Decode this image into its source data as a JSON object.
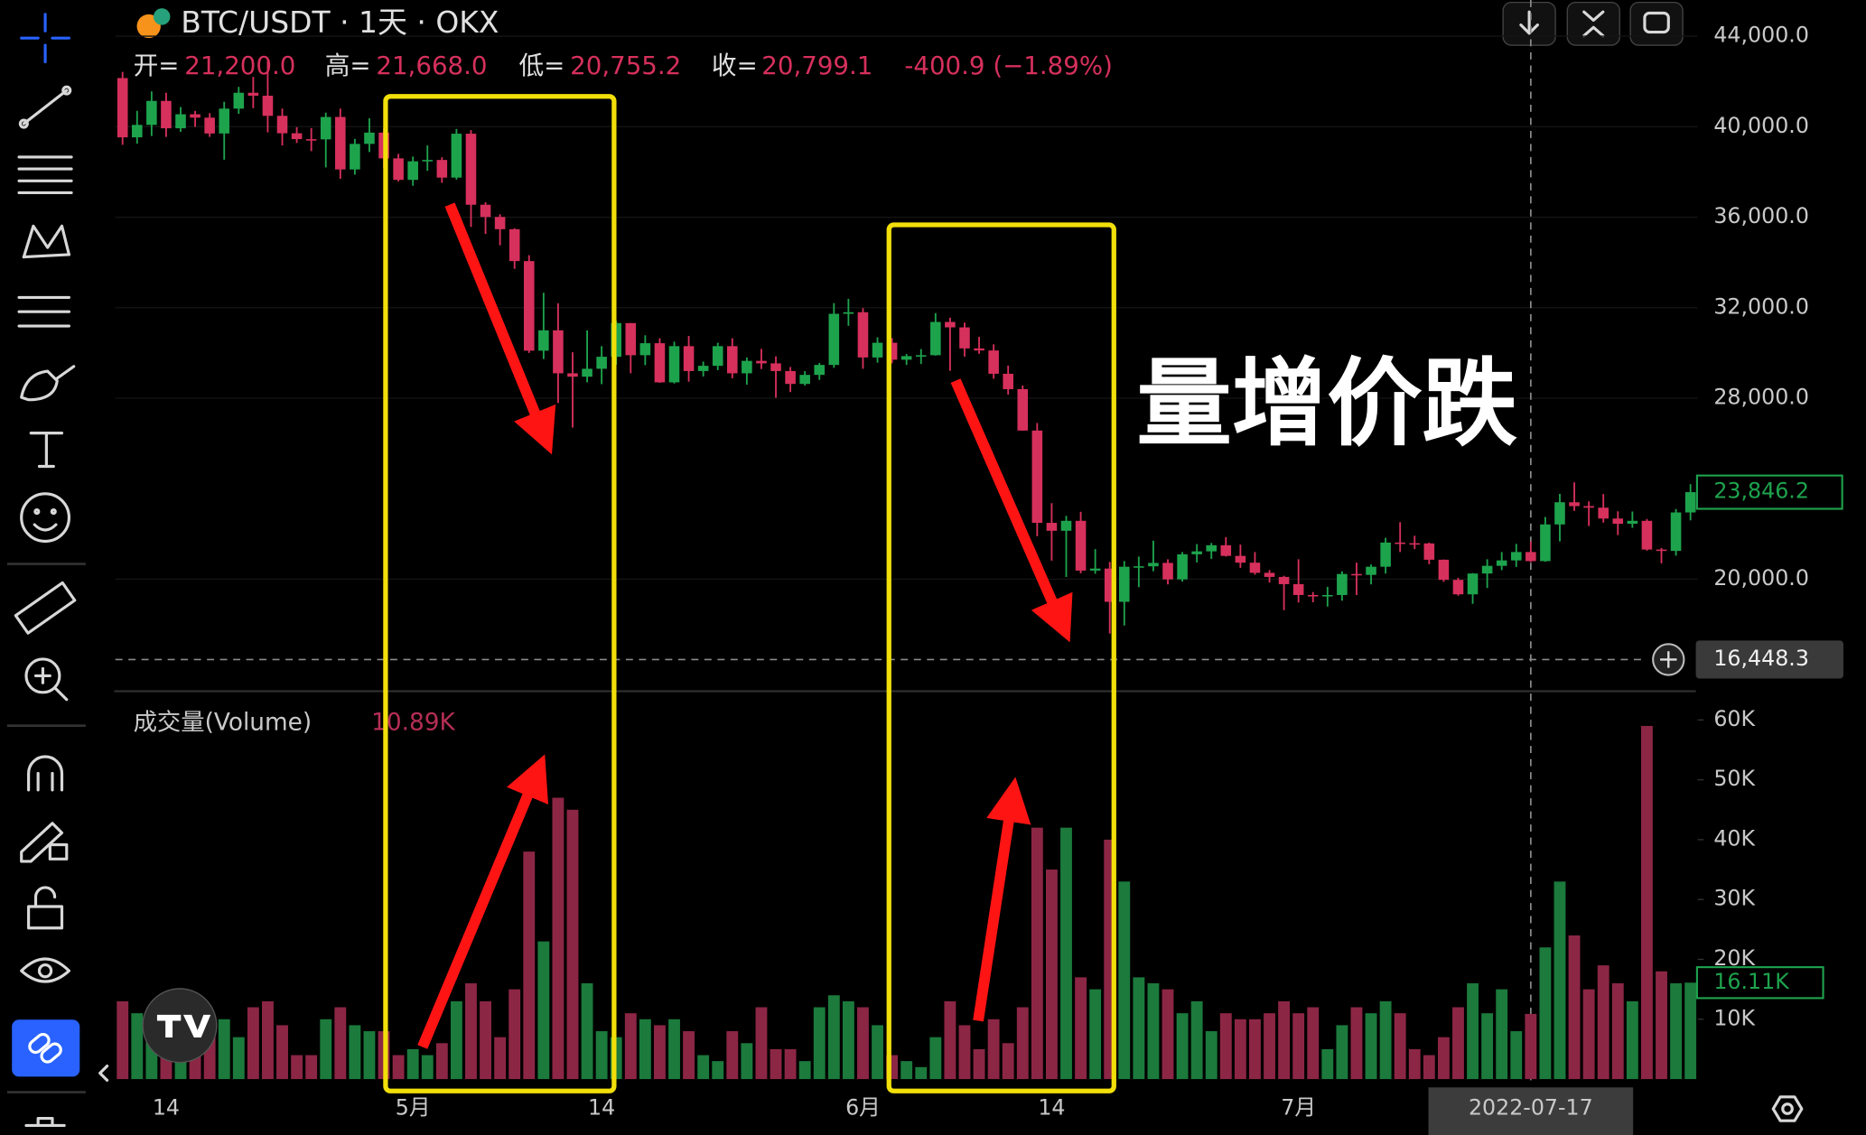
{
  "header": {
    "symbol": "BTC/USDT · 1天 · OKX",
    "ohlc": [
      {
        "label": "开=",
        "value": "21,200.0"
      },
      {
        "label": "高=",
        "value": "21,668.0"
      },
      {
        "label": "低=",
        "value": "20,755.2"
      },
      {
        "label": "收=",
        "value": "20,799.1"
      }
    ],
    "change": "-400.9 (−1.89%)"
  },
  "chart_data": [
    {
      "type": "candlestick",
      "annotation": "量增价跌",
      "categories": [
        null,
        null,
        null,
        "14",
        null,
        null,
        null,
        null,
        null,
        null,
        null,
        null,
        null,
        null,
        null,
        null,
        null,
        null,
        null,
        null,
        "5月",
        null,
        null,
        null,
        null,
        null,
        null,
        null,
        null,
        null,
        null,
        null,
        null,
        "14",
        null,
        null,
        null,
        null,
        null,
        null,
        null,
        null,
        null,
        null,
        null,
        null,
        null,
        null,
        null,
        null,
        null,
        "6月",
        null,
        null,
        null,
        null,
        null,
        null,
        null,
        null,
        null,
        null,
        null,
        null,
        "14",
        null,
        null,
        null,
        null,
        null,
        null,
        null,
        null,
        null,
        null,
        null,
        null,
        null,
        null,
        null,
        null,
        "7月",
        null,
        null,
        null,
        null,
        null,
        null,
        null,
        null,
        null,
        null,
        null,
        null,
        null,
        null,
        null,
        "2022-07-17",
        null,
        null,
        null,
        null,
        null,
        null,
        null,
        null,
        null,
        null,
        null
      ],
      "open": [
        42150,
        39530,
        40080,
        41140,
        39930,
        40550,
        40400,
        39700,
        40800,
        41500,
        41370,
        40480,
        39710,
        39450,
        39440,
        40430,
        38110,
        39240,
        39740,
        38600,
        37650,
        38470,
        38530,
        37750,
        39690,
        36550,
        36010,
        35470,
        34060,
        30100,
        31000,
        29100,
        28950,
        29300,
        29830,
        31320,
        29900,
        30430,
        28700,
        30300,
        29200,
        29430,
        30300,
        29100,
        29650,
        29540,
        29200,
        28630,
        29030,
        29470,
        31730,
        31800,
        29800,
        30450,
        29700,
        29860,
        29900,
        31370,
        31130,
        30200,
        30110,
        29080,
        28400,
        26570,
        22490,
        22140,
        22580,
        20380,
        20470,
        19000,
        20550,
        20570,
        20720,
        19990,
        21100,
        21230,
        21500,
        21030,
        20730,
        20280,
        20100,
        19780,
        19300,
        19250,
        19300,
        20230,
        20190,
        20550,
        21620,
        21590,
        21580,
        20860,
        19970,
        19330,
        20250,
        20590,
        20830,
        21200,
        20799.1,
        22420,
        23400,
        23230,
        23160,
        22680,
        22450,
        22580,
        21310,
        21250,
        22950
      ],
      "high": [
        42420,
        40700,
        41560,
        41500,
        40870,
        40700,
        40600,
        41100,
        41760,
        42200,
        42980,
        40800,
        39980,
        39940,
        40620,
        40800,
        39460,
        40370,
        39920,
        38800,
        38680,
        39170,
        38650,
        39900,
        39850,
        36660,
        36130,
        35510,
        34320,
        32660,
        32190,
        30030,
        31000,
        30300,
        31420,
        31320,
        30780,
        30650,
        30500,
        30750,
        29620,
        30450,
        30650,
        29800,
        30180,
        29850,
        29380,
        29200,
        29560,
        32200,
        32390,
        31980,
        30690,
        30660,
        29950,
        30170,
        31760,
        31560,
        31340,
        30710,
        30380,
        29440,
        28560,
        26900,
        23360,
        22800,
        22980,
        21330,
        20760,
        20800,
        21000,
        21700,
        20880,
        21200,
        21550,
        21600,
        21860,
        21530,
        21200,
        20400,
        20150,
        20880,
        19430,
        19660,
        20350,
        20730,
        20650,
        21830,
        22520,
        21920,
        21620,
        20870,
        20060,
        20270,
        20880,
        21200,
        21560,
        21668,
        22750,
        23770,
        24280,
        23440,
        23760,
        23000,
        22990,
        22660,
        21380,
        23100,
        24200
      ],
      "low": [
        39200,
        39250,
        39590,
        39550,
        39770,
        39990,
        39550,
        38540,
        40570,
        40820,
        39750,
        39170,
        39280,
        38920,
        38200,
        37700,
        37880,
        38880,
        38180,
        37580,
        37390,
        38050,
        37520,
        37660,
        35570,
        35260,
        34760,
        33720,
        30000,
        29730,
        27790,
        26700,
        28700,
        28620,
        29480,
        29100,
        29460,
        28680,
        28650,
        28730,
        28960,
        29240,
        28880,
        28600,
        29290,
        28020,
        28270,
        28560,
        28810,
        29340,
        31200,
        29300,
        29570,
        29540,
        29470,
        29510,
        29880,
        29210,
        29840,
        29960,
        28860,
        28160,
        26560,
        21900,
        20820,
        20100,
        20260,
        20240,
        17600,
        17950,
        19650,
        20350,
        19770,
        19890,
        20740,
        20900,
        21000,
        20500,
        20200,
        19850,
        18630,
        18970,
        18980,
        18790,
        19050,
        19300,
        19770,
        20250,
        21200,
        21330,
        20660,
        19880,
        19270,
        18910,
        19610,
        20400,
        20540,
        20755.2,
        20770,
        21670,
        23020,
        22350,
        22500,
        21950,
        22270,
        21260,
        20700,
        21040,
        22600
      ],
      "close": [
        39530,
        40080,
        41140,
        39930,
        40550,
        40400,
        39700,
        40800,
        41500,
        41370,
        40480,
        39710,
        39450,
        39440,
        40430,
        38110,
        39240,
        39740,
        38600,
        37650,
        38470,
        38530,
        37750,
        39690,
        36550,
        36010,
        35470,
        34060,
        30100,
        31000,
        29100,
        28950,
        29300,
        29830,
        31320,
        29900,
        30430,
        28700,
        30300,
        29200,
        29430,
        30300,
        29100,
        29650,
        29540,
        29200,
        28630,
        29030,
        29470,
        31730,
        31800,
        29800,
        30450,
        29700,
        29860,
        29900,
        31370,
        31130,
        30200,
        30110,
        29080,
        28400,
        26570,
        22490,
        22140,
        22580,
        20380,
        20470,
        19000,
        20550,
        20570,
        20720,
        19990,
        21100,
        21230,
        21500,
        21030,
        20730,
        20280,
        20100,
        19780,
        19300,
        19250,
        19300,
        20230,
        20190,
        20550,
        21620,
        21590,
        21580,
        20860,
        19970,
        19330,
        20250,
        20590,
        20830,
        21200,
        20799.1,
        22420,
        23400,
        23230,
        23160,
        22680,
        22450,
        22580,
        21310,
        21250,
        22950,
        23846.2
      ],
      "up_color": "#1ea34d",
      "down_color": "#d6305c",
      "ylim": [
        15100,
        45600
      ],
      "yticks": [
        {
          "value": 20000,
          "label": "20,000.0"
        },
        {
          "value": 28000,
          "label": "28,000.0"
        },
        {
          "value": 32000,
          "label": "32,000.0"
        },
        {
          "value": 36000,
          "label": "36,000.0"
        },
        {
          "value": 40000,
          "label": "40,000.0"
        },
        {
          "value": 44000,
          "label": "44,000.0"
        }
      ],
      "grid": true,
      "last_price": {
        "value": 23846.2,
        "label": "23,846.2"
      },
      "crosshair": {
        "value": 16448.3,
        "label": "16,448.3",
        "category_index": 97
      }
    },
    {
      "type": "bar",
      "title": "成交量(Volume)",
      "readout": {
        "value": 10890,
        "label": "10.89K"
      },
      "values": [
        13000,
        11000,
        9000,
        7000,
        5000,
        6000,
        8000,
        10000,
        7000,
        12000,
        13000,
        9000,
        4000,
        4000,
        10000,
        12000,
        9000,
        8000,
        8000,
        4000,
        5000,
        4000,
        6000,
        13000,
        16000,
        13000,
        7000,
        15000,
        38000,
        23000,
        47000,
        45000,
        16000,
        8000,
        7000,
        11000,
        10000,
        9000,
        10000,
        8000,
        4000,
        3000,
        8000,
        6000,
        12000,
        5000,
        5000,
        3000,
        12000,
        14000,
        13000,
        12000,
        9000,
        4000,
        3000,
        2000,
        7000,
        13000,
        9000,
        5000,
        10000,
        6000,
        12000,
        42000,
        35000,
        42000,
        17000,
        15000,
        40000,
        33000,
        17000,
        16000,
        15000,
        11000,
        13000,
        8000,
        11000,
        10000,
        10000,
        11000,
        13000,
        11000,
        12000,
        5000,
        9000,
        12000,
        11000,
        13000,
        11000,
        5000,
        4000,
        7000,
        12000,
        16000,
        11000,
        15000,
        8000,
        10890,
        22000,
        33000,
        24000,
        15000,
        19000,
        16000,
        13000,
        59000,
        18000,
        16000,
        16110
      ],
      "up_color": "#1b7a3c",
      "down_color": "#8c2645",
      "ylim": [
        0,
        64000
      ],
      "yticks": [
        {
          "value": 10000,
          "label": "10K"
        },
        {
          "value": 20000,
          "label": "20K"
        },
        {
          "value": 30000,
          "label": "30K"
        },
        {
          "value": 40000,
          "label": "40K"
        },
        {
          "value": 50000,
          "label": "50K"
        },
        {
          "value": 60000,
          "label": "60K"
        }
      ],
      "last_value": {
        "value": 16110,
        "label": "16.11K"
      }
    }
  ]
}
